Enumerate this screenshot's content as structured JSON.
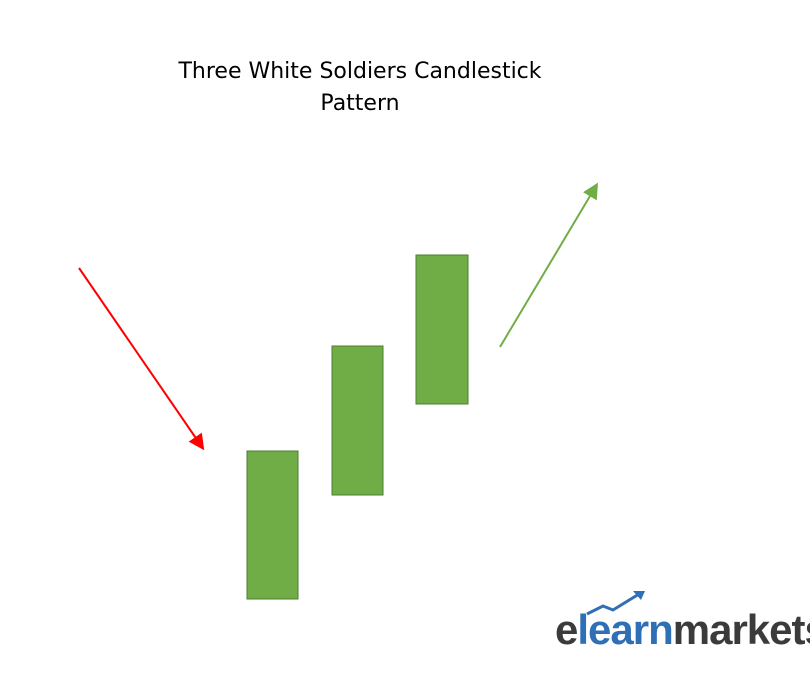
{
  "title": {
    "line1": "Three White Soldiers Candlestick",
    "line2": "Pattern"
  },
  "colors": {
    "candle_fill": "#70ad47",
    "candle_stroke": "#4e7d2f",
    "downtrend_arrow": "#ff0000",
    "uptrend_arrow": "#70ad47",
    "logo_dark": "#3b3b3b",
    "logo_blue": "#2f6fb5"
  },
  "candles": [
    {
      "name": "first-soldier",
      "color": "green"
    },
    {
      "name": "second-soldier",
      "color": "green"
    },
    {
      "name": "third-soldier",
      "color": "green"
    }
  ],
  "arrows": [
    {
      "name": "downtrend",
      "direction": "down-right",
      "color": "red"
    },
    {
      "name": "uptrend",
      "direction": "up-right",
      "color": "green"
    }
  ],
  "logo": {
    "e": "e",
    "learn": "learn",
    "markets": "markets",
    "icon": "rising-arrow-icon"
  }
}
